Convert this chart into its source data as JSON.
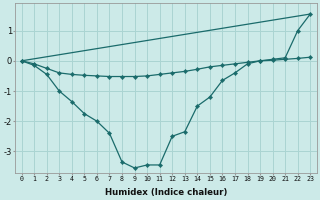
{
  "xlabel": "Humidex (Indice chaleur)",
  "background_color": "#cceae8",
  "grid_color": "#aad4d2",
  "line_color": "#1a6b6b",
  "x_ticks": [
    0,
    1,
    2,
    3,
    4,
    5,
    6,
    7,
    8,
    9,
    10,
    11,
    12,
    13,
    14,
    15,
    16,
    17,
    18,
    19,
    20,
    21,
    22,
    23
  ],
  "xlim": [
    -0.5,
    23.5
  ],
  "ylim": [
    -3.7,
    1.9
  ],
  "y_ticks": [
    -3,
    -2,
    -1,
    0,
    1
  ],
  "series": [
    {
      "x": [
        0,
        1,
        2,
        3,
        4,
        5,
        6,
        7,
        8,
        9,
        10,
        11,
        12,
        13,
        14,
        15,
        16,
        17,
        18,
        19,
        20,
        21,
        22,
        23
      ],
      "y": [
        0.0,
        -0.1,
        -0.25,
        -0.4,
        -0.45,
        -0.48,
        -0.5,
        -0.52,
        -0.52,
        -0.52,
        -0.5,
        -0.45,
        -0.4,
        -0.35,
        -0.28,
        -0.2,
        -0.15,
        -0.1,
        -0.05,
        0.0,
        0.02,
        0.05,
        0.08,
        0.12
      ],
      "marker": true
    },
    {
      "x": [
        0,
        1,
        2,
        3,
        4,
        5,
        6,
        7,
        8,
        9,
        10,
        11,
        12,
        13,
        14,
        15,
        16,
        17,
        18,
        19,
        20,
        21,
        22,
        23
      ],
      "y": [
        0.0,
        -0.15,
        -0.45,
        -1.0,
        -1.35,
        -1.75,
        -2.0,
        -2.4,
        -3.35,
        -3.55,
        -3.45,
        -3.45,
        -2.5,
        -2.35,
        -1.5,
        -1.2,
        -0.65,
        -0.4,
        -0.1,
        0.0,
        0.05,
        0.1,
        1.0,
        1.55
      ],
      "marker": true
    },
    {
      "x": [
        0,
        23
      ],
      "y": [
        0.0,
        1.55
      ],
      "marker": false
    }
  ]
}
